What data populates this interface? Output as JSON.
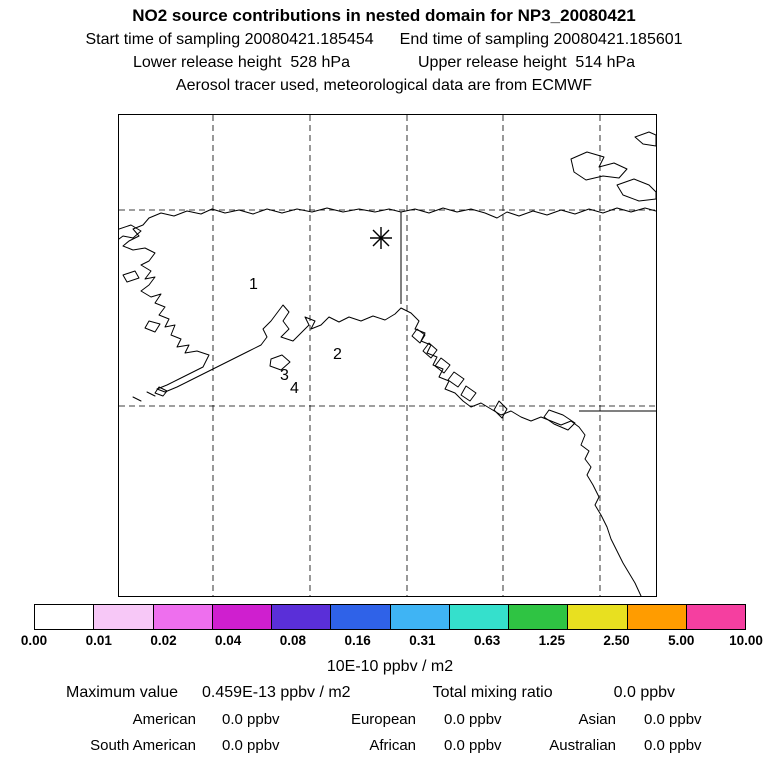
{
  "header": {
    "title": "NO2 source contributions in nested domain for NP3_20080421",
    "start_time": "Start time of sampling 20080421.185454",
    "end_time": "End time of sampling 20080421.185601",
    "lower_release": "Lower release height  528 hPa",
    "upper_release": "Upper release height  514 hPa",
    "tracer_info": "Aerosol tracer used, meteorological data are from ECMWF"
  },
  "map": {
    "release_points": [
      {
        "label": "1"
      },
      {
        "label": "2"
      },
      {
        "label": "3"
      },
      {
        "label": "4"
      }
    ],
    "sampling_marker": "asterisk"
  },
  "colorbar": {
    "ticks": [
      "0.00",
      "0.01",
      "0.02",
      "0.04",
      "0.08",
      "0.16",
      "0.31",
      "0.63",
      "1.25",
      "2.50",
      "5.00",
      "10.00"
    ],
    "colors": [
      "#ffffff",
      "#f7c8f7",
      "#ee6fee",
      "#cf1fcf",
      "#5a2fd8",
      "#2f62e8",
      "#3fb4f4",
      "#35e0cc",
      "#2fc443",
      "#e8e020",
      "#ff9c00",
      "#f53fa0"
    ],
    "units": "10E-10 ppbv / m2"
  },
  "stats": {
    "maximum_label": "Maximum value",
    "maximum_value": "0.459E-13 ppbv / m2",
    "total_label": "Total mixing ratio",
    "total_value": "0.0 ppbv",
    "contributions": [
      {
        "label": "American",
        "value": "0.0 ppbv"
      },
      {
        "label": "European",
        "value": "0.0 ppbv"
      },
      {
        "label": "Asian",
        "value": "0.0 ppbv"
      },
      {
        "label": "South American",
        "value": "0.0 ppbv"
      },
      {
        "label": "African",
        "value": "0.0 ppbv"
      },
      {
        "label": "Australian",
        "value": "0.0 ppbv"
      }
    ]
  },
  "chart_data": {
    "type": "heatmap",
    "title": "NO2 source contributions in nested domain for NP3_20080421",
    "subtitle_lines": [
      "Start time of sampling 20080421.185454",
      "End time of sampling 20080421.185601",
      "Lower release height 528 hPa",
      "Upper release height 514 hPa",
      "Aerosol tracer used, meteorological data are from ECMWF"
    ],
    "map_region": "Alaska / NE Pacific / western North America coastlines with lat-lon grid",
    "colorbar": {
      "levels": [
        0.0,
        0.01,
        0.02,
        0.04,
        0.08,
        0.16,
        0.31,
        0.63,
        1.25,
        2.5,
        5.0,
        10.0
      ],
      "units": "10E-10 ppbv / m2",
      "scale": "discrete log-spaced"
    },
    "field": "no grid cells above the 0.01 contour; plotted concentration field effectively zero",
    "maximum_value": "0.459E-13 ppbv / m2",
    "total_mixing_ratio_ppbv": 0.0,
    "source_contributions_ppbv": {
      "American": 0.0,
      "European": 0.0,
      "Asian": 0.0,
      "South American": 0.0,
      "African": 0.0,
      "Australian": 0.0
    },
    "map_markers": [
      {
        "label": "1",
        "type": "release-point"
      },
      {
        "label": "2",
        "type": "release-point"
      },
      {
        "label": "3",
        "type": "release-point"
      },
      {
        "label": "4",
        "type": "release-point"
      },
      {
        "label": "*",
        "type": "sampling-location"
      }
    ]
  }
}
